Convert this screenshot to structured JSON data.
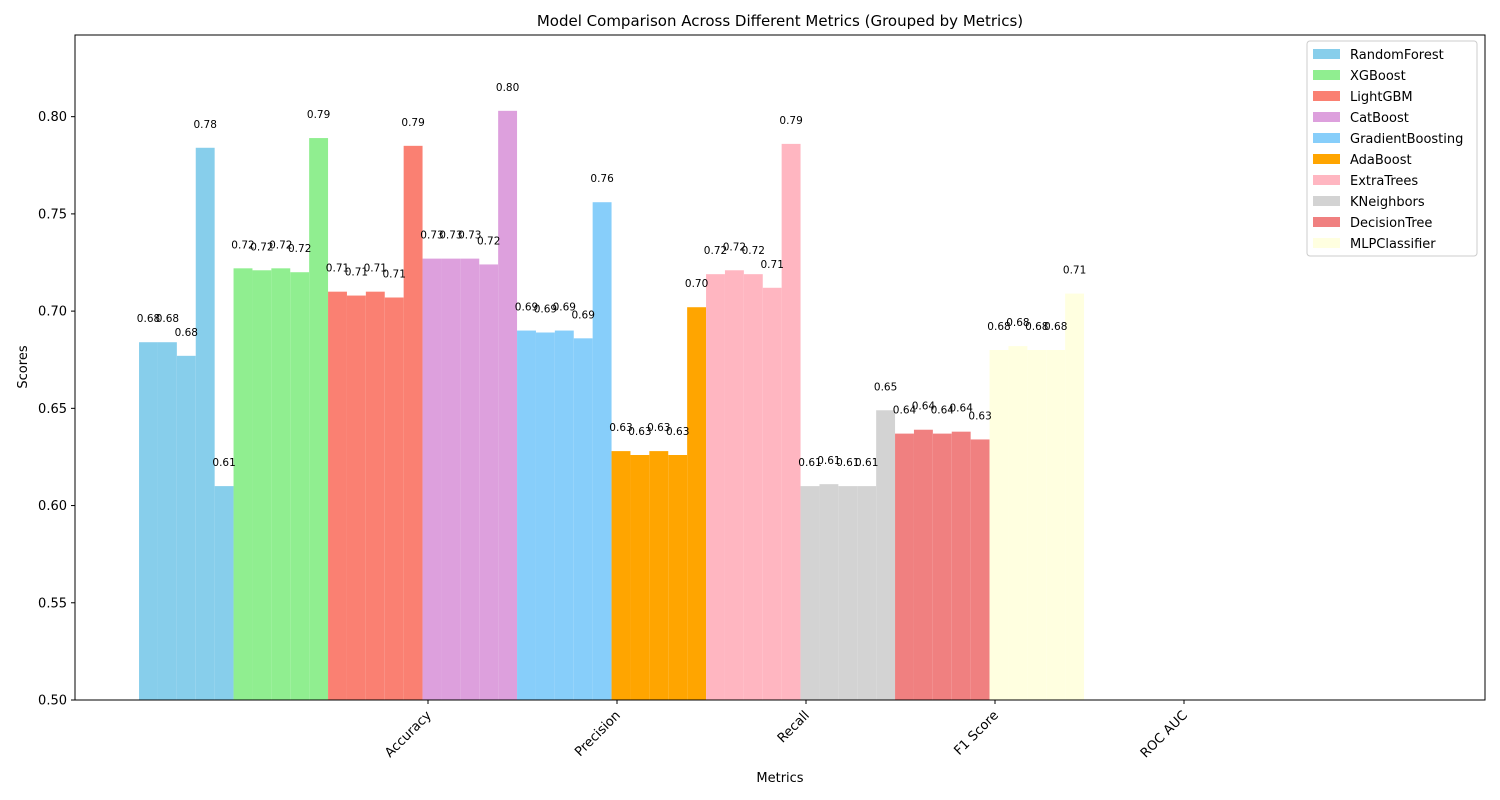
{
  "chart_data": {
    "type": "bar",
    "title": "Model Comparison Across Different Metrics (Grouped by Metrics)",
    "xlabel": "Metrics",
    "ylabel": "Scores",
    "ylim": [
      0.5,
      0.842
    ],
    "yticks": [
      "0.50",
      "0.55",
      "0.60",
      "0.65",
      "0.70",
      "0.75",
      "0.80"
    ],
    "categories": [
      "Accuracy",
      "Precision",
      "Recall",
      "F1 Score",
      "ROC AUC"
    ],
    "legend_position": "top-right",
    "series": [
      {
        "name": "RandomForest",
        "color": "#87CEEB",
        "values": [
          0.684,
          0.684,
          0.677,
          0.784,
          0.61
        ]
      },
      {
        "name": "XGBoost",
        "color": "#90EE90",
        "values": [
          0.722,
          0.721,
          0.722,
          0.72,
          0.789
        ]
      },
      {
        "name": "LightGBM",
        "color": "#FA8072",
        "values": [
          0.71,
          0.708,
          0.71,
          0.707,
          0.785
        ]
      },
      {
        "name": "CatBoost",
        "color": "#DDA0DD",
        "values": [
          0.727,
          0.727,
          0.727,
          0.724,
          0.803
        ]
      },
      {
        "name": "GradientBoosting",
        "color": "#87CEFA",
        "values": [
          0.69,
          0.689,
          0.69,
          0.686,
          0.756
        ]
      },
      {
        "name": "AdaBoost",
        "color": "#FFA500",
        "values": [
          0.628,
          0.626,
          0.628,
          0.626,
          0.702
        ]
      },
      {
        "name": "ExtraTrees",
        "color": "#FFB6C1",
        "values": [
          0.719,
          0.721,
          0.719,
          0.712,
          0.786
        ]
      },
      {
        "name": "KNeighbors",
        "color": "#D3D3D3",
        "values": [
          0.61,
          0.611,
          0.61,
          0.61,
          0.649
        ]
      },
      {
        "name": "DecisionTree",
        "color": "#F08080",
        "values": [
          0.637,
          0.639,
          0.637,
          0.638,
          0.634
        ]
      },
      {
        "name": "MLPClassifier",
        "color": "#FFFFE0",
        "values": [
          0.68,
          0.682,
          0.68,
          0.68,
          0.709
        ]
      }
    ]
  }
}
